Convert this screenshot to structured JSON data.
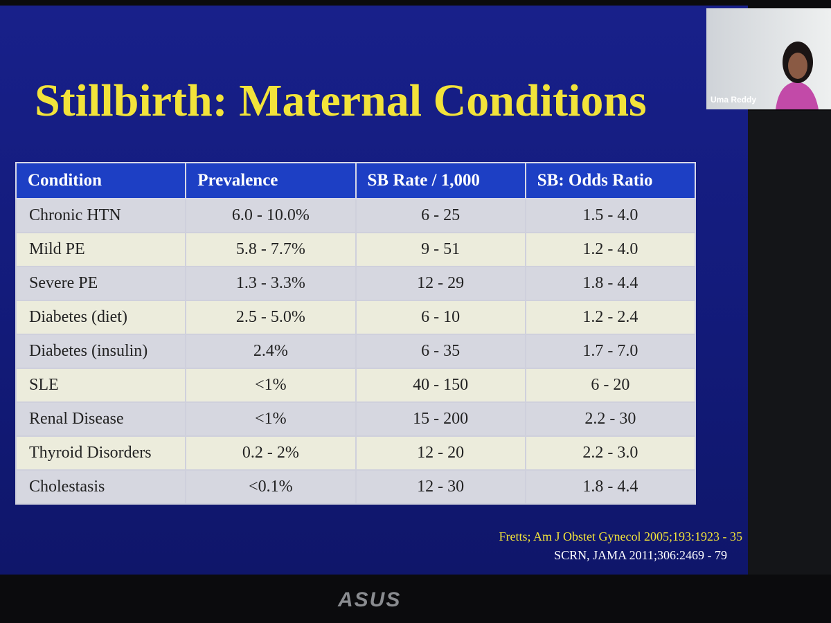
{
  "slide": {
    "title": "Stillbirth: Maternal Conditions",
    "table": {
      "header": [
        "Condition",
        "Prevalence",
        "SB Rate / 1,000",
        "SB: Odds Ratio"
      ],
      "rows": [
        [
          "Chronic HTN",
          "6.0 - 10.0%",
          "6 - 25",
          "1.5 - 4.0"
        ],
        [
          "Mild PE",
          "5.8 - 7.7%",
          "9 - 51",
          "1.2 - 4.0"
        ],
        [
          "Severe PE",
          "1.3 - 3.3%",
          "12 - 29",
          "1.8 - 4.4"
        ],
        [
          "Diabetes (diet)",
          "2.5 - 5.0%",
          "6 - 10",
          "1.2 - 2.4"
        ],
        [
          "Diabetes (insulin)",
          "2.4%",
          "6 - 35",
          "1.7 - 7.0"
        ],
        [
          "SLE",
          "<1%",
          "40 - 150",
          "6 - 20"
        ],
        [
          "Renal Disease",
          "<1%",
          "15 - 200",
          "2.2 - 30"
        ],
        [
          "Thyroid Disorders",
          "0.2 - 2%",
          "12 - 20",
          "2.2 - 3.0"
        ],
        [
          "Cholestasis",
          "<0.1%",
          "12 - 30",
          "1.8 - 4.4"
        ]
      ]
    },
    "citations": [
      "Fretts; Am J Obstet Gynecol 2005;193:1923 - 35",
      "SCRN, JAMA 2011;306:2469 - 79"
    ]
  },
  "video": {
    "name": "Uma Reddy"
  },
  "monitor": {
    "brand": "ASUS"
  }
}
